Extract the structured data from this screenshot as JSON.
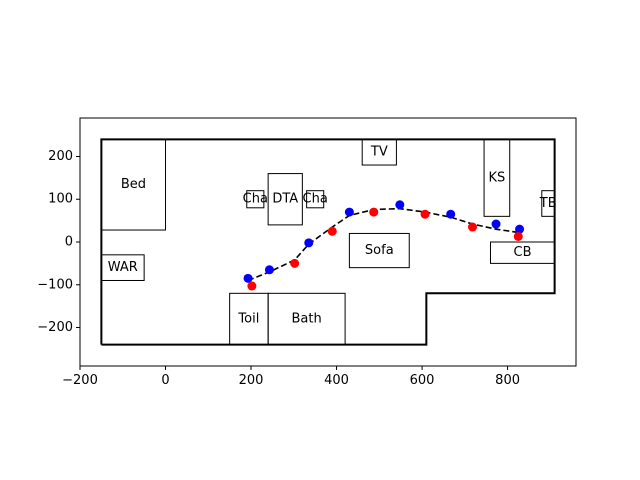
{
  "chart_data": {
    "type": "scatter",
    "title": "",
    "xlabel": "",
    "ylabel": "",
    "xlim": [
      -200,
      960
    ],
    "ylim": [
      -290,
      290
    ],
    "xticks": [
      -200,
      0,
      200,
      400,
      600,
      800
    ],
    "yticks": [
      -200,
      -100,
      0,
      100,
      200
    ],
    "grid": false,
    "walls": [
      [
        [
          -150,
          -240
        ],
        [
          -150,
          240
        ],
        [
          910,
          240
        ],
        [
          910,
          -120
        ],
        [
          610,
          -120
        ],
        [
          610,
          -240
        ],
        [
          -150,
          -240
        ]
      ]
    ],
    "furniture": [
      {
        "label": "Bed",
        "x0": -150,
        "y0": 28,
        "x1": 0,
        "y1": 240
      },
      {
        "label": "WAR",
        "x0": -150,
        "y0": -90,
        "x1": -50,
        "y1": -30
      },
      {
        "label": "Cha",
        "x0": 190,
        "y0": 80,
        "x1": 230,
        "y1": 120
      },
      {
        "label": "DTA",
        "x0": 240,
        "y0": 40,
        "x1": 320,
        "y1": 160
      },
      {
        "label": "Cha",
        "x0": 330,
        "y0": 80,
        "x1": 370,
        "y1": 120
      },
      {
        "label": "TV",
        "x0": 460,
        "y0": 180,
        "x1": 540,
        "y1": 240
      },
      {
        "label": "Sofa",
        "x0": 430,
        "y0": -60,
        "x1": 570,
        "y1": 20
      },
      {
        "label": "KS",
        "x0": 745,
        "y0": 60,
        "x1": 805,
        "y1": 240
      },
      {
        "label": "TB",
        "x0": 880,
        "y0": 60,
        "x1": 910,
        "y1": 120
      },
      {
        "label": "CB",
        "x0": 760,
        "y0": -50,
        "x1": 910,
        "y1": 0
      },
      {
        "label": "Toil",
        "x0": 150,
        "y0": -240,
        "x1": 240,
        "y1": -120
      },
      {
        "label": "Bath",
        "x0": 240,
        "y0": -240,
        "x1": 420,
        "y1": -120
      }
    ],
    "series": [
      {
        "color": "#0000ff",
        "x": [
          193,
          243,
          335,
          430,
          548,
          667,
          773,
          828
        ],
        "y": [
          -85,
          -65,
          -2,
          70,
          87,
          65,
          42,
          30
        ]
      },
      {
        "color": "#ff0000",
        "x": [
          202,
          302,
          390,
          487,
          607,
          718,
          825
        ],
        "y": [
          -103,
          -50,
          25,
          70,
          65,
          35,
          13
        ]
      }
    ],
    "path": {
      "style": "dashed",
      "color": "#000000",
      "x": [
        193,
        243,
        302,
        335,
        390,
        430,
        487,
        548,
        607,
        667,
        718,
        773,
        828
      ],
      "y": [
        -90,
        -70,
        -42,
        -5,
        35,
        62,
        76,
        78,
        70,
        58,
        42,
        30,
        22
      ]
    }
  }
}
